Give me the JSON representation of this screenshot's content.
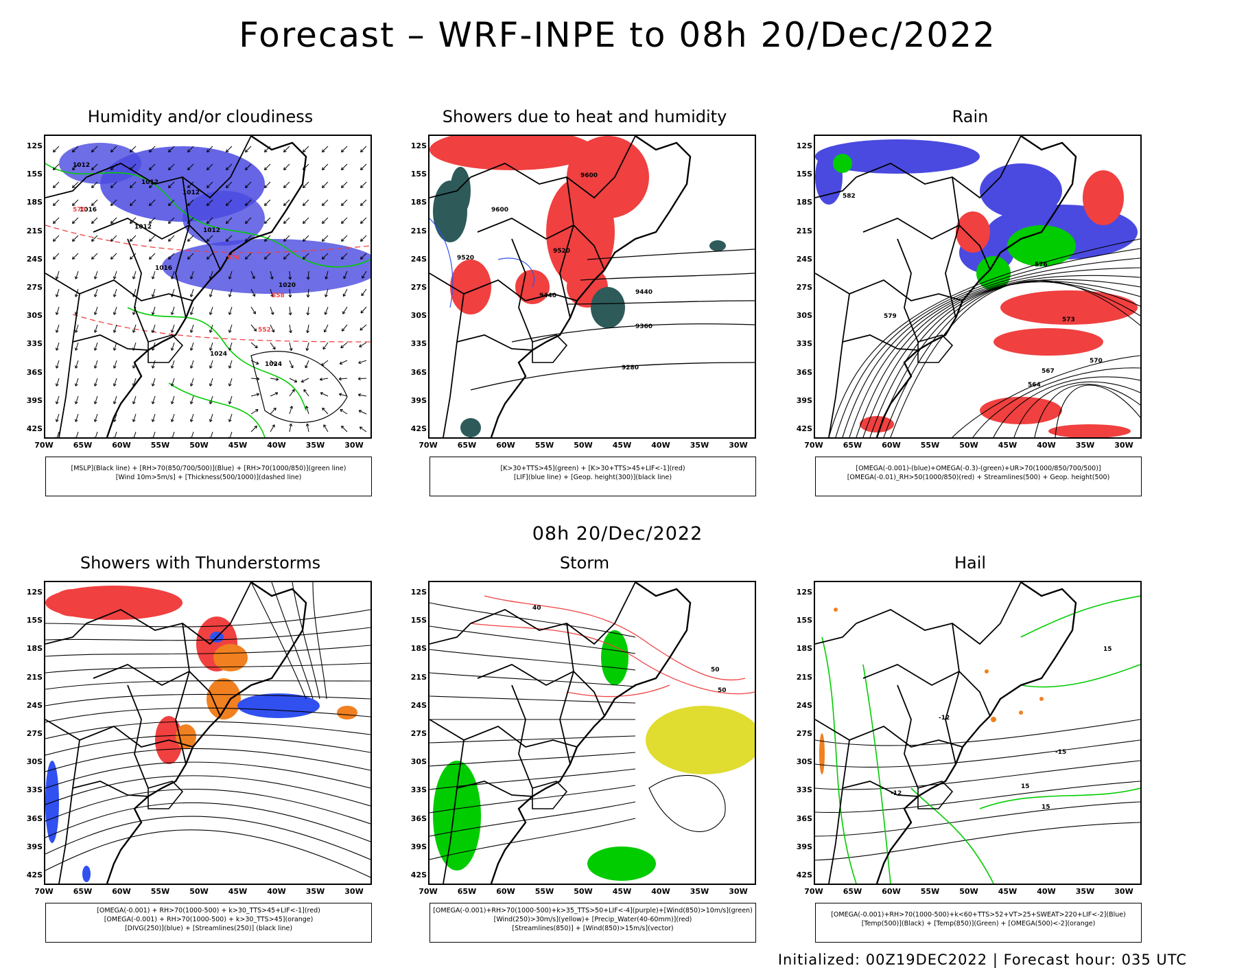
{
  "title": "Forecast – WRF-INPE to 08h 20/Dec/2022",
  "mid_title": "08h 20/Dec/2022",
  "footer": "Initialized: 00Z19DEC2022 | Forecast hour: 035 UTC",
  "lat_labels": [
    "12S",
    "15S",
    "18S",
    "21S",
    "24S",
    "27S",
    "30S",
    "33S",
    "36S",
    "39S",
    "42S"
  ],
  "lon_labels": [
    "70W",
    "65W",
    "60W",
    "55W",
    "50W",
    "45W",
    "40W",
    "35W",
    "30W"
  ],
  "colors": {
    "blue": "#4a4ae0",
    "red": "#f04040",
    "green": "#00cc00",
    "orange": "#f08020",
    "yellow": "#e0dc30",
    "teal": "#2e5a5a"
  },
  "panels": [
    {
      "title": "Humidity and/or cloudiness",
      "legend": [
        "[MSLP](Black line) + [RH>70(850/700/500)](Blue) + [RH>70(1000/850)](green line)",
        "[Wind 10m>5m/s] + [Thickness(500/1000)](dashed line)"
      ],
      "labels": [
        "1012",
        "1012",
        "1012",
        "1012",
        "1012",
        "1016",
        "1016",
        "1020",
        "1024",
        "1024",
        "570",
        "576",
        "558",
        "552"
      ]
    },
    {
      "title": "Showers due to heat and humidity",
      "legend": [
        "[K>30+TTS>45](green) + [K>30+TTS>45+LIF<-1](red)",
        "[LIF](blue line) + [Geop. height(300)](black line)"
      ],
      "labels": [
        "9600",
        "9600",
        "9520",
        "9520",
        "9440",
        "9440",
        "9360",
        "9280"
      ]
    },
    {
      "title": "Rain",
      "legend": [
        "[OMEGA(-0.001)-(blue)+OMEGA(-0.3)-(green)+UR>70(1000/850/700/500)]",
        "[OMEGA(-0.01)_RH>50(1000/850)(red) + Streamlines(500) + Geop. height(500)"
      ],
      "labels": [
        "582",
        "579",
        "576",
        "573",
        "570",
        "567",
        "564"
      ]
    },
    {
      "title": "Showers with Thunderstorms",
      "legend": [
        "[OMEGA(-0.001) + RH>70(1000-500) + k>30_TTS>45+LIF<-1](red)",
        "[OMEGA(-0.001) + RH>70(1000-500) + k>30_TTS>45](orange)",
        "[DIVG(250)](blue) + [Streamlines(250)] (black line)"
      ],
      "labels": []
    },
    {
      "title": "Storm",
      "legend": [
        "[OMEGA(-0.001)+RH>70(1000-500)+k>35_TTS>50+LIF<-4](purple)+[Wind(850)>10m/s](green)",
        "[Wind(250)>30m/s](yellow)+ [Precip_Water(40-60mm)](red)",
        "[Streamlines(850)] + [Wind(850)>15m/s](vector)"
      ],
      "labels": [
        "50",
        "50",
        "40"
      ]
    },
    {
      "title": "Hail",
      "legend": [
        "[OMEGA(-0.001)+RH>70(1000-500)+k<60+TTS>52+VT>25+SWEAT>220+LIF<-2](Blue)",
        "[Temp(500)](Black) + [Temp(850)](Green) + [OMEGA(500)<-2](orange)"
      ],
      "labels": [
        "-12",
        "-12",
        "-15",
        "15",
        "15",
        "15"
      ]
    }
  ]
}
